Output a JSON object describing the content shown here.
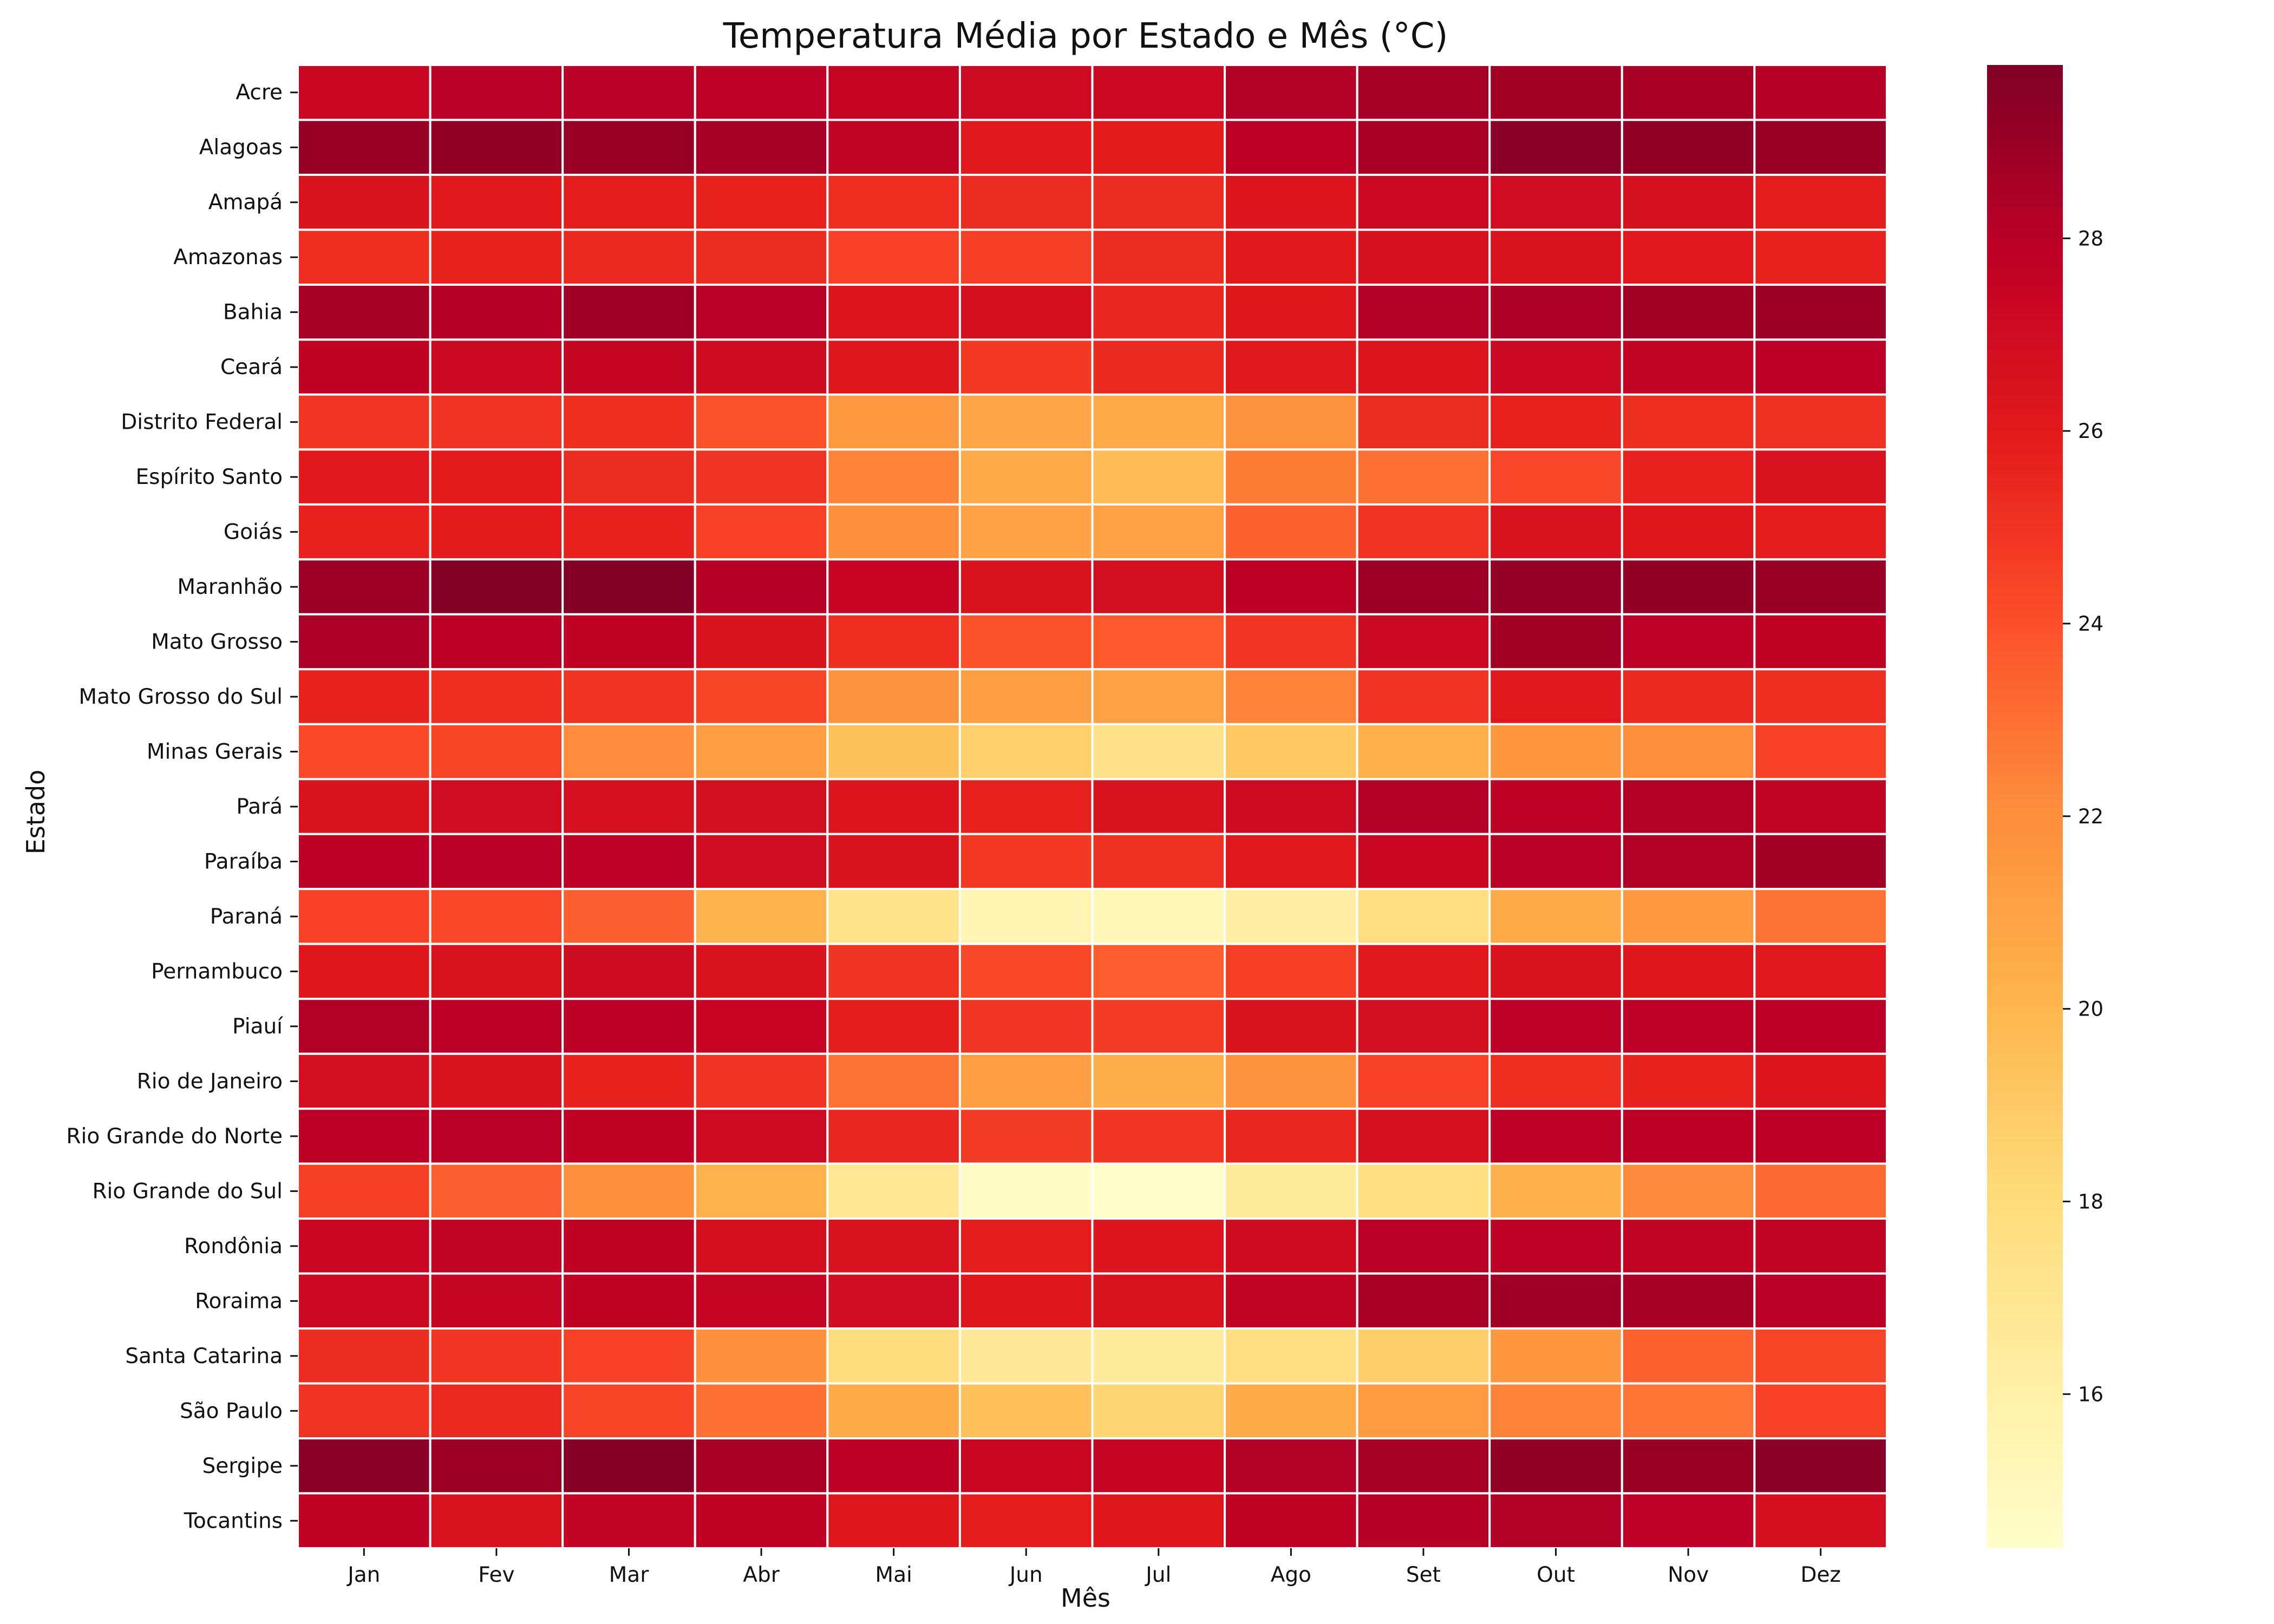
{
  "chart_data": {
    "type": "heatmap",
    "title": "Temperatura Média por Estado e Mês (°C)",
    "xlabel": "Mês",
    "ylabel": "Estado",
    "x_categories": [
      "Jan",
      "Fev",
      "Mar",
      "Abr",
      "Mai",
      "Jun",
      "Jul",
      "Ago",
      "Set",
      "Out",
      "Nov",
      "Dez"
    ],
    "y_categories": [
      "Acre",
      "Alagoas",
      "Amapá",
      "Amazonas",
      "Bahia",
      "Ceará",
      "Distrito Federal",
      "Espírito Santo",
      "Goiás",
      "Maranhão",
      "Mato Grosso",
      "Mato Grosso do Sul",
      "Minas Gerais",
      "Pará",
      "Paraíba",
      "Paraná",
      "Pernambuco",
      "Piauí",
      "Rio de Janeiro",
      "Rio Grande do Norte",
      "Rio Grande do Sul",
      "Rondônia",
      "Roraima",
      "Santa Catarina",
      "São Paulo",
      "Sergipe",
      "Tocantins"
    ],
    "values": [
      [
        27.3,
        28.0,
        28.0,
        27.8,
        27.5,
        27.1,
        27.2,
        28.2,
        28.6,
        28.7,
        28.5,
        28.1
      ],
      [
        29.0,
        29.2,
        29.0,
        28.6,
        27.6,
        26.0,
        25.9,
        27.9,
        28.5,
        29.5,
        29.2,
        29.0
      ],
      [
        26.4,
        26.0,
        25.8,
        25.6,
        25.2,
        25.3,
        25.3,
        26.3,
        27.2,
        26.9,
        26.6,
        25.8
      ],
      [
        25.2,
        25.6,
        25.4,
        25.3,
        24.5,
        24.6,
        25.3,
        26.0,
        26.6,
        26.5,
        26.1,
        25.7
      ],
      [
        28.6,
        28.1,
        28.8,
        28.0,
        26.3,
        26.7,
        25.5,
        26.2,
        28.2,
        28.4,
        28.7,
        28.9
      ],
      [
        27.7,
        27.2,
        27.5,
        27.0,
        26.2,
        24.8,
        25.4,
        26.1,
        26.3,
        27.2,
        27.6,
        27.9
      ],
      [
        24.9,
        25.0,
        25.2,
        23.9,
        21.5,
        20.8,
        20.6,
        21.8,
        25.3,
        25.7,
        25.2,
        25.1
      ],
      [
        26.0,
        25.9,
        25.3,
        25.0,
        22.4,
        20.6,
        19.7,
        22.6,
        23.0,
        24.3,
        25.7,
        26.5
      ],
      [
        25.7,
        25.9,
        25.6,
        24.5,
        21.9,
        21.0,
        21.1,
        23.4,
        25.0,
        26.5,
        26.2,
        25.8
      ],
      [
        28.9,
        29.7,
        29.7,
        28.1,
        27.4,
        26.4,
        26.8,
        27.9,
        28.9,
        29.1,
        29.2,
        29.0
      ],
      [
        28.4,
        27.9,
        27.7,
        26.4,
        25.2,
        23.9,
        23.7,
        24.9,
        27.2,
        28.7,
        27.8,
        27.7
      ],
      [
        25.6,
        25.2,
        25.0,
        24.4,
        21.8,
        21.2,
        21.1,
        22.4,
        25.0,
        26.1,
        25.4,
        25.2
      ],
      [
        24.2,
        24.4,
        22.1,
        21.2,
        19.4,
        18.7,
        17.4,
        19.1,
        20.3,
        21.6,
        22.0,
        24.5
      ],
      [
        26.4,
        26.9,
        26.6,
        26.8,
        26.3,
        25.7,
        26.5,
        27.1,
        28.2,
        27.8,
        28.3,
        27.6
      ],
      [
        27.9,
        28.0,
        27.8,
        26.9,
        26.4,
        24.8,
        25.1,
        26.1,
        27.3,
        28.0,
        28.3,
        28.7
      ],
      [
        24.5,
        24.3,
        23.5,
        20.1,
        17.3,
        15.6,
        15.3,
        16.2,
        17.8,
        20.6,
        21.5,
        22.9
      ],
      [
        26.2,
        26.5,
        27.0,
        26.4,
        25.0,
        24.3,
        23.6,
        24.6,
        26.0,
        26.4,
        26.2,
        26.1
      ],
      [
        28.3,
        27.9,
        27.9,
        27.4,
        25.8,
        24.9,
        24.7,
        26.4,
        26.8,
        27.8,
        27.8,
        27.9
      ],
      [
        26.8,
        26.4,
        25.6,
        25.0,
        22.9,
        21.2,
        20.4,
        21.8,
        24.5,
        25.2,
        25.7,
        26.3
      ],
      [
        27.9,
        28.0,
        27.7,
        27.1,
        25.5,
        24.7,
        24.9,
        25.5,
        26.6,
        27.8,
        27.9,
        27.9
      ],
      [
        24.6,
        23.5,
        22.0,
        20.2,
        16.9,
        14.7,
        14.4,
        16.5,
        17.7,
        20.3,
        22.2,
        23.2
      ],
      [
        27.3,
        27.6,
        27.7,
        26.7,
        26.5,
        25.8,
        26.3,
        27.0,
        28.0,
        27.8,
        27.6,
        27.6
      ],
      [
        27.2,
        27.5,
        27.7,
        27.5,
        26.9,
        26.2,
        26.5,
        27.6,
        28.5,
        28.8,
        28.6,
        28.0
      ],
      [
        25.3,
        24.9,
        24.5,
        21.9,
        17.9,
        16.7,
        16.5,
        17.7,
        18.8,
        21.6,
        23.4,
        24.4
      ],
      [
        25.0,
        25.4,
        24.4,
        23.0,
        20.5,
        19.5,
        18.4,
        20.5,
        21.4,
        22.4,
        22.8,
        24.5
      ],
      [
        29.5,
        28.9,
        29.6,
        28.5,
        27.9,
        27.3,
        27.5,
        28.2,
        28.6,
        29.2,
        29.0,
        29.5
      ],
      [
        27.7,
        26.5,
        27.6,
        27.7,
        26.2,
        25.8,
        26.2,
        27.7,
        28.1,
        28.3,
        27.8,
        26.7
      ]
    ],
    "colormap": "YlOrRd",
    "vmin": 14.4,
    "vmax": 29.8,
    "colorbar_ticks": [
      16,
      18,
      20,
      22,
      24,
      26,
      28
    ],
    "grid": false,
    "cell_border_color": "#ffffff"
  }
}
